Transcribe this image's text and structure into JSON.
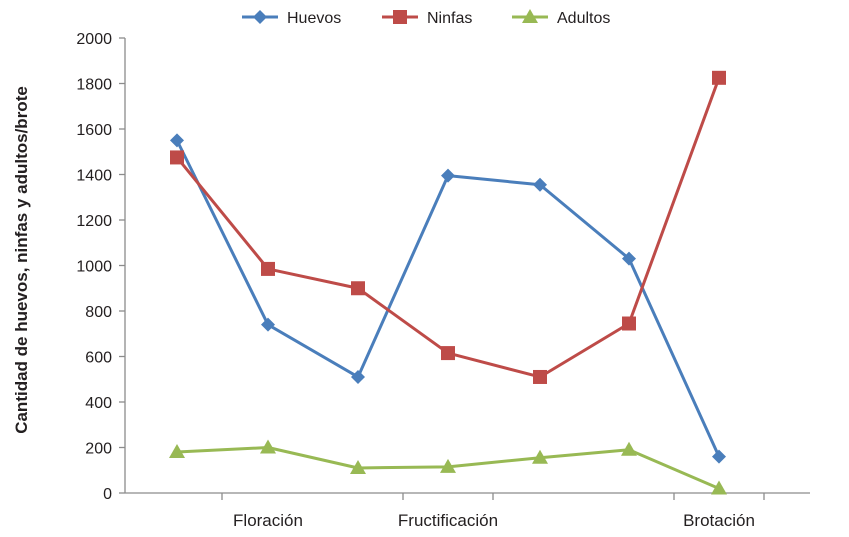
{
  "chart_data": {
    "type": "line",
    "title": "",
    "xlabel": "",
    "ylabel": "Cantidad de huevos, ninfas y adultos/brote",
    "ylim": [
      0,
      2000
    ],
    "yticks": [
      "0",
      "200",
      "400",
      "600",
      "800",
      "1000",
      "1200",
      "1400",
      "1600",
      "1800",
      "2000"
    ],
    "categories": [
      "Floración",
      "Fructificación",
      "Brotación"
    ],
    "x": [
      1,
      2,
      3,
      4,
      5,
      6,
      7
    ],
    "series": [
      {
        "name": "Huevos",
        "color": "#4a7ebb",
        "marker": "diamond",
        "values": [
          1550,
          740,
          510,
          1395,
          1355,
          1030,
          160
        ]
      },
      {
        "name": "Ninfas",
        "color": "#be4b48",
        "marker": "square",
        "values": [
          1475,
          985,
          900,
          615,
          510,
          745,
          1825
        ]
      },
      {
        "name": "Adultos",
        "color": "#98b954",
        "marker": "triangle",
        "values": [
          180,
          200,
          110,
          115,
          155,
          190,
          20
        ]
      }
    ],
    "grid": false,
    "legend_position": "top"
  }
}
